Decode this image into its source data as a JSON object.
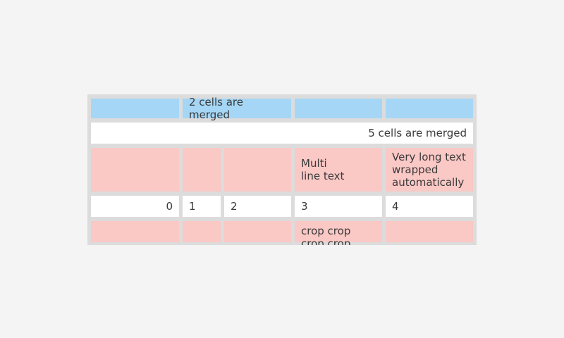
{
  "colors": {
    "page-bg": "#f4f4f4",
    "table-bg": "#dcdcdc",
    "cell-blue": "#a5d6f6",
    "cell-pink": "#fac8c5",
    "cell-white": "#ffffff",
    "text": "#3a3a3a"
  },
  "table": {
    "row_merged2": {
      "label": "2 cells are merged"
    },
    "row_merged5": {
      "label": "5 cells are merged"
    },
    "row_multiline": {
      "multi_line": "Multi\nline text",
      "wrapped": "Very long text\nwrapped\nautomatically"
    },
    "row_numbers": {
      "c0": "0",
      "c1": "1",
      "c2": "2",
      "c3": "3",
      "c4": "4"
    },
    "row_crop": {
      "crop": "crop crop\ncrop crop"
    }
  }
}
